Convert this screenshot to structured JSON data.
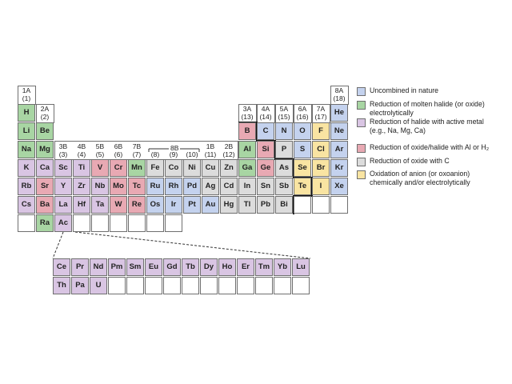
{
  "colors": {
    "uncombined": "#c4d2ee",
    "molten": "#a8d5a3",
    "active_metal": "#d9c5e3",
    "al_h2": "#e8a9b3",
    "carbon": "#dcdcdc",
    "anion": "#f9e4a2",
    "none": "#ffffff"
  },
  "group_labels": [
    {
      "col": 1,
      "row": 0,
      "top": "1A",
      "bottom": "(1)"
    },
    {
      "col": 2,
      "row": 1,
      "top": "2A",
      "bottom": "(2)"
    },
    {
      "col": 13,
      "row": 1,
      "top": "3A",
      "bottom": "(13)"
    },
    {
      "col": 14,
      "row": 1,
      "top": "4A",
      "bottom": "(14)"
    },
    {
      "col": 15,
      "row": 1,
      "top": "5A",
      "bottom": "(15)"
    },
    {
      "col": 16,
      "row": 1,
      "top": "6A",
      "bottom": "(16)"
    },
    {
      "col": 17,
      "row": 1,
      "top": "7A",
      "bottom": "(17)"
    },
    {
      "col": 18,
      "row": 0,
      "top": "8A",
      "bottom": "(18)"
    },
    {
      "col": 3,
      "row": 3,
      "top": "3B",
      "bottom": "(3)"
    },
    {
      "col": 4,
      "row": 3,
      "top": "4B",
      "bottom": "(4)"
    },
    {
      "col": 5,
      "row": 3,
      "top": "5B",
      "bottom": "(5)"
    },
    {
      "col": 6,
      "row": 3,
      "top": "6B",
      "bottom": "(6)"
    },
    {
      "col": 7,
      "row": 3,
      "top": "7B",
      "bottom": "(7)"
    },
    {
      "col": 8,
      "row": 3,
      "top": "",
      "bottom": "(8)"
    },
    {
      "col": 9,
      "row": 3,
      "top": "",
      "bottom": "(9)"
    },
    {
      "col": 10,
      "row": 3,
      "top": "",
      "bottom": "(10)"
    },
    {
      "col": 11,
      "row": 3,
      "top": "1B",
      "bottom": "(11)"
    },
    {
      "col": 12,
      "row": 3,
      "top": "2B",
      "bottom": "(12)"
    }
  ],
  "group_8b_label": "8B",
  "elements": [
    {
      "s": "H",
      "r": 1,
      "c": 1,
      "k": "molten"
    },
    {
      "s": "He",
      "r": 1,
      "c": 18,
      "k": "uncombined"
    },
    {
      "s": "Li",
      "r": 2,
      "c": 1,
      "k": "molten"
    },
    {
      "s": "Be",
      "r": 2,
      "c": 2,
      "k": "molten"
    },
    {
      "s": "B",
      "r": 2,
      "c": 13,
      "k": "al_h2"
    },
    {
      "s": "C",
      "r": 2,
      "c": 14,
      "k": "uncombined"
    },
    {
      "s": "N",
      "r": 2,
      "c": 15,
      "k": "uncombined"
    },
    {
      "s": "O",
      "r": 2,
      "c": 16,
      "k": "uncombined"
    },
    {
      "s": "F",
      "r": 2,
      "c": 17,
      "k": "anion"
    },
    {
      "s": "Ne",
      "r": 2,
      "c": 18,
      "k": "uncombined"
    },
    {
      "s": "Na",
      "r": 3,
      "c": 1,
      "k": "molten"
    },
    {
      "s": "Mg",
      "r": 3,
      "c": 2,
      "k": "molten"
    },
    {
      "s": "Al",
      "r": 3,
      "c": 13,
      "k": "molten"
    },
    {
      "s": "Si",
      "r": 3,
      "c": 14,
      "k": "al_h2"
    },
    {
      "s": "P",
      "r": 3,
      "c": 15,
      "k": "carbon"
    },
    {
      "s": "S",
      "r": 3,
      "c": 16,
      "k": "uncombined"
    },
    {
      "s": "Cl",
      "r": 3,
      "c": 17,
      "k": "anion"
    },
    {
      "s": "Ar",
      "r": 3,
      "c": 18,
      "k": "uncombined"
    },
    {
      "s": "K",
      "r": 4,
      "c": 1,
      "k": "active_metal"
    },
    {
      "s": "Ca",
      "r": 4,
      "c": 2,
      "k": "active_metal"
    },
    {
      "s": "Sc",
      "r": 4,
      "c": 3,
      "k": "active_metal"
    },
    {
      "s": "Ti",
      "r": 4,
      "c": 4,
      "k": "active_metal"
    },
    {
      "s": "V",
      "r": 4,
      "c": 5,
      "k": "al_h2"
    },
    {
      "s": "Cr",
      "r": 4,
      "c": 6,
      "k": "al_h2"
    },
    {
      "s": "Mn",
      "r": 4,
      "c": 7,
      "k": "molten"
    },
    {
      "s": "Fe",
      "r": 4,
      "c": 8,
      "k": "carbon"
    },
    {
      "s": "Co",
      "r": 4,
      "c": 9,
      "k": "carbon"
    },
    {
      "s": "Ni",
      "r": 4,
      "c": 10,
      "k": "carbon"
    },
    {
      "s": "Cu",
      "r": 4,
      "c": 11,
      "k": "carbon"
    },
    {
      "s": "Zn",
      "r": 4,
      "c": 12,
      "k": "carbon"
    },
    {
      "s": "Ga",
      "r": 4,
      "c": 13,
      "k": "molten"
    },
    {
      "s": "Ge",
      "r": 4,
      "c": 14,
      "k": "al_h2"
    },
    {
      "s": "As",
      "r": 4,
      "c": 15,
      "k": "carbon"
    },
    {
      "s": "Se",
      "r": 4,
      "c": 16,
      "k": "anion"
    },
    {
      "s": "Br",
      "r": 4,
      "c": 17,
      "k": "anion"
    },
    {
      "s": "Kr",
      "r": 4,
      "c": 18,
      "k": "uncombined"
    },
    {
      "s": "Rb",
      "r": 5,
      "c": 1,
      "k": "active_metal"
    },
    {
      "s": "Sr",
      "r": 5,
      "c": 2,
      "k": "al_h2"
    },
    {
      "s": "Y",
      "r": 5,
      "c": 3,
      "k": "active_metal"
    },
    {
      "s": "Zr",
      "r": 5,
      "c": 4,
      "k": "active_metal"
    },
    {
      "s": "Nb",
      "r": 5,
      "c": 5,
      "k": "active_metal"
    },
    {
      "s": "Mo",
      "r": 5,
      "c": 6,
      "k": "al_h2"
    },
    {
      "s": "Tc",
      "r": 5,
      "c": 7,
      "k": "al_h2"
    },
    {
      "s": "Ru",
      "r": 5,
      "c": 8,
      "k": "uncombined"
    },
    {
      "s": "Rh",
      "r": 5,
      "c": 9,
      "k": "uncombined"
    },
    {
      "s": "Pd",
      "r": 5,
      "c": 10,
      "k": "uncombined"
    },
    {
      "s": "Ag",
      "r": 5,
      "c": 11,
      "k": "carbon"
    },
    {
      "s": "Cd",
      "r": 5,
      "c": 12,
      "k": "carbon"
    },
    {
      "s": "In",
      "r": 5,
      "c": 13,
      "k": "carbon"
    },
    {
      "s": "Sn",
      "r": 5,
      "c": 14,
      "k": "carbon"
    },
    {
      "s": "Sb",
      "r": 5,
      "c": 15,
      "k": "carbon"
    },
    {
      "s": "Te",
      "r": 5,
      "c": 16,
      "k": "anion"
    },
    {
      "s": "I",
      "r": 5,
      "c": 17,
      "k": "anion"
    },
    {
      "s": "Xe",
      "r": 5,
      "c": 18,
      "k": "uncombined"
    },
    {
      "s": "Cs",
      "r": 6,
      "c": 1,
      "k": "active_metal"
    },
    {
      "s": "Ba",
      "r": 6,
      "c": 2,
      "k": "al_h2"
    },
    {
      "s": "La",
      "r": 6,
      "c": 3,
      "k": "active_metal"
    },
    {
      "s": "Hf",
      "r": 6,
      "c": 4,
      "k": "active_metal"
    },
    {
      "s": "Ta",
      "r": 6,
      "c": 5,
      "k": "active_metal"
    },
    {
      "s": "W",
      "r": 6,
      "c": 6,
      "k": "al_h2"
    },
    {
      "s": "Re",
      "r": 6,
      "c": 7,
      "k": "al_h2"
    },
    {
      "s": "Os",
      "r": 6,
      "c": 8,
      "k": "uncombined"
    },
    {
      "s": "Ir",
      "r": 6,
      "c": 9,
      "k": "uncombined"
    },
    {
      "s": "Pt",
      "r": 6,
      "c": 10,
      "k": "uncombined"
    },
    {
      "s": "Au",
      "r": 6,
      "c": 11,
      "k": "uncombined"
    },
    {
      "s": "Hg",
      "r": 6,
      "c": 12,
      "k": "carbon"
    },
    {
      "s": "Tl",
      "r": 6,
      "c": 13,
      "k": "carbon"
    },
    {
      "s": "Pb",
      "r": 6,
      "c": 14,
      "k": "carbon"
    },
    {
      "s": "Bi",
      "r": 6,
      "c": 15,
      "k": "carbon"
    },
    {
      "s": "",
      "r": 6,
      "c": 16,
      "k": "none"
    },
    {
      "s": "",
      "r": 6,
      "c": 17,
      "k": "none"
    },
    {
      "s": "",
      "r": 6,
      "c": 18,
      "k": "none"
    },
    {
      "s": "",
      "r": 7,
      "c": 1,
      "k": "none"
    },
    {
      "s": "Ra",
      "r": 7,
      "c": 2,
      "k": "molten"
    },
    {
      "s": "Ac",
      "r": 7,
      "c": 3,
      "k": "active_metal"
    },
    {
      "s": "",
      "r": 7,
      "c": 4,
      "k": "none"
    },
    {
      "s": "",
      "r": 7,
      "c": 5,
      "k": "none"
    },
    {
      "s": "",
      "r": 7,
      "c": 6,
      "k": "none"
    },
    {
      "s": "",
      "r": 7,
      "c": 7,
      "k": "none"
    },
    {
      "s": "",
      "r": 7,
      "c": 8,
      "k": "none"
    },
    {
      "s": "",
      "r": 7,
      "c": 9,
      "k": "none"
    }
  ],
  "f_block": [
    {
      "s": "Ce",
      "r": 1,
      "c": 0,
      "k": "active_metal"
    },
    {
      "s": "Pr",
      "r": 1,
      "c": 1,
      "k": "active_metal"
    },
    {
      "s": "Nd",
      "r": 1,
      "c": 2,
      "k": "active_metal"
    },
    {
      "s": "Pm",
      "r": 1,
      "c": 3,
      "k": "active_metal"
    },
    {
      "s": "Sm",
      "r": 1,
      "c": 4,
      "k": "active_metal"
    },
    {
      "s": "Eu",
      "r": 1,
      "c": 5,
      "k": "active_metal"
    },
    {
      "s": "Gd",
      "r": 1,
      "c": 6,
      "k": "active_metal"
    },
    {
      "s": "Tb",
      "r": 1,
      "c": 7,
      "k": "active_metal"
    },
    {
      "s": "Dy",
      "r": 1,
      "c": 8,
      "k": "active_metal"
    },
    {
      "s": "Ho",
      "r": 1,
      "c": 9,
      "k": "active_metal"
    },
    {
      "s": "Er",
      "r": 1,
      "c": 10,
      "k": "active_metal"
    },
    {
      "s": "Tm",
      "r": 1,
      "c": 11,
      "k": "active_metal"
    },
    {
      "s": "Yb",
      "r": 1,
      "c": 12,
      "k": "active_metal"
    },
    {
      "s": "Lu",
      "r": 1,
      "c": 13,
      "k": "active_metal"
    },
    {
      "s": "Th",
      "r": 2,
      "c": 0,
      "k": "active_metal"
    },
    {
      "s": "Pa",
      "r": 2,
      "c": 1,
      "k": "active_metal"
    },
    {
      "s": "U",
      "r": 2,
      "c": 2,
      "k": "active_metal"
    },
    {
      "s": "",
      "r": 2,
      "c": 3,
      "k": "none"
    },
    {
      "s": "",
      "r": 2,
      "c": 4,
      "k": "none"
    },
    {
      "s": "",
      "r": 2,
      "c": 5,
      "k": "none"
    },
    {
      "s": "",
      "r": 2,
      "c": 6,
      "k": "none"
    },
    {
      "s": "",
      "r": 2,
      "c": 7,
      "k": "none"
    },
    {
      "s": "",
      "r": 2,
      "c": 8,
      "k": "none"
    },
    {
      "s": "",
      "r": 2,
      "c": 9,
      "k": "none"
    },
    {
      "s": "",
      "r": 2,
      "c": 10,
      "k": "none"
    },
    {
      "s": "",
      "r": 2,
      "c": 11,
      "k": "none"
    },
    {
      "s": "",
      "r": 2,
      "c": 12,
      "k": "none"
    },
    {
      "s": "",
      "r": 2,
      "c": 13,
      "k": "none"
    }
  ],
  "legend": [
    {
      "k": "uncombined",
      "lines": [
        "Uncombined in nature"
      ]
    },
    {
      "k": "molten",
      "lines": [
        "Reduction of molten halide (or oxide)",
        "electrolytically"
      ]
    },
    {
      "k": "active_metal",
      "lines": [
        "Reduction of halide with active metal",
        "(e.g., Na, Mg, Ca)"
      ]
    },
    {
      "k": "al_h2",
      "lines": [
        "Reduction of oxide/halide with Al or H₂"
      ]
    },
    {
      "k": "carbon",
      "lines": [
        "Reduction of oxide with C"
      ]
    },
    {
      "k": "anion",
      "lines": [
        "Oxidation of anion (or oxoanion)",
        "chemically and/or electrolytically"
      ]
    }
  ]
}
